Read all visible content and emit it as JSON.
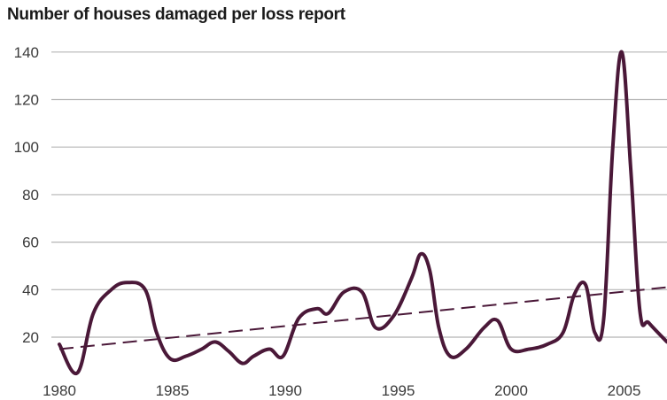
{
  "chart_data": {
    "type": "line",
    "title": "Number of houses damaged per loss report",
    "xlabel": "",
    "ylabel": "",
    "xlim": [
      1980,
      2006.9
    ],
    "ylim": [
      4,
      147
    ],
    "x_ticks": [
      1980,
      1985,
      1990,
      1995,
      2000,
      2005
    ],
    "y_ticks": [
      20,
      40,
      60,
      80,
      100,
      120,
      140
    ],
    "grid": "horizontal",
    "colors": {
      "line": "#4a1838",
      "trend": "#4a1838",
      "grid": "#b5b5b5",
      "text": "#3a3a3a"
    },
    "series": [
      {
        "style": "solid",
        "x": [
          1980,
          1980.8,
          1981.5,
          1982.3,
          1983,
          1983.8,
          1984.3,
          1984.9,
          1985.6,
          1986.3,
          1986.9,
          1987.5,
          1988.1,
          1988.6,
          1989.3,
          1989.9,
          1990.6,
          1991.4,
          1991.9,
          1992.6,
          1993.4,
          1994,
          1994.8,
          1995.6,
          1996,
          1996.4,
          1996.8,
          1997.3,
          1998,
          1998.8,
          1999.4,
          2000,
          2000.8,
          2001.6,
          2002.3,
          2002.8,
          2003.3,
          2003.7,
          2004.1,
          2004.5,
          2004.9,
          2005.3,
          2005.7,
          2006.1,
          2006.9
        ],
        "y": [
          17,
          5,
          30,
          40,
          43,
          40,
          22,
          11,
          12,
          15,
          18,
          14,
          9,
          12,
          15,
          12,
          28,
          32,
          30,
          39,
          39,
          24,
          29,
          45,
          55,
          48,
          24,
          12,
          15,
          24,
          27,
          15,
          15,
          17,
          22,
          38,
          42,
          22,
          28,
          100,
          140,
          90,
          31,
          26,
          18
        ]
      },
      {
        "style": "dashed",
        "x": [
          1980,
          2006.9
        ],
        "y": [
          15,
          41
        ]
      }
    ]
  }
}
